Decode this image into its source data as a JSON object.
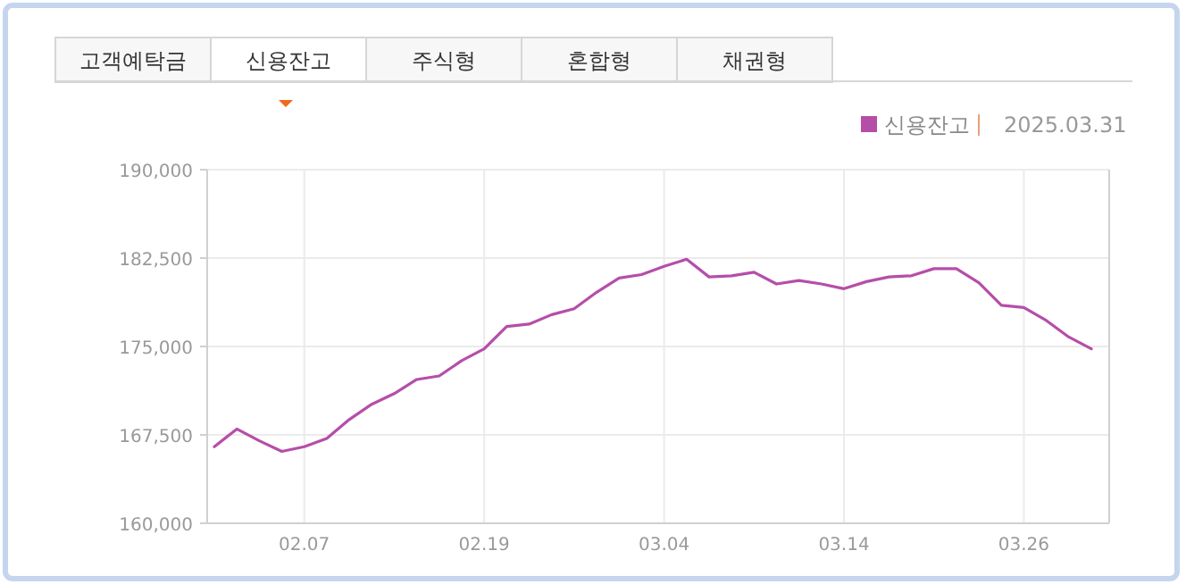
{
  "chart_data": {
    "type": "line",
    "subtitle": "2025.03.31",
    "annotations": [
      "고객예탁금",
      "신용잔고",
      "주식형",
      "혼합형",
      "채권형"
    ],
    "categories": [
      null,
      null,
      null,
      null,
      "02.07",
      null,
      null,
      null,
      null,
      null,
      null,
      null,
      "02.19",
      null,
      null,
      null,
      null,
      null,
      null,
      null,
      "03.04",
      null,
      null,
      null,
      null,
      null,
      null,
      null,
      "03.14",
      null,
      null,
      null,
      null,
      null,
      null,
      null,
      "03.26",
      null,
      null,
      null
    ],
    "series": [
      {
        "name": "신용잔고",
        "color": "#b54ea9",
        "values": [
          166500,
          168000,
          167000,
          166100,
          166500,
          167200,
          168800,
          170100,
          171000,
          172200,
          172500,
          173800,
          174800,
          176700,
          176900,
          177700,
          178200,
          179600,
          180800,
          181100,
          181800,
          182400,
          180900,
          181000,
          181300,
          180300,
          180600,
          180300,
          179900,
          180500,
          180900,
          181000,
          181600,
          181600,
          180400,
          178500,
          178300,
          177200,
          175800,
          174800
        ]
      }
    ],
    "ylim": [
      160000,
      190000
    ],
    "yticks": [
      {
        "value": 160000,
        "label": "160,000"
      },
      {
        "value": 167500,
        "label": "167,500"
      },
      {
        "value": 175000,
        "label": "175,000"
      },
      {
        "value": 182500,
        "label": "182,500"
      },
      {
        "value": 190000,
        "label": "190,000"
      }
    ],
    "grid": true,
    "legend": "top right",
    "marker": "none",
    "line_style": "solid"
  }
}
